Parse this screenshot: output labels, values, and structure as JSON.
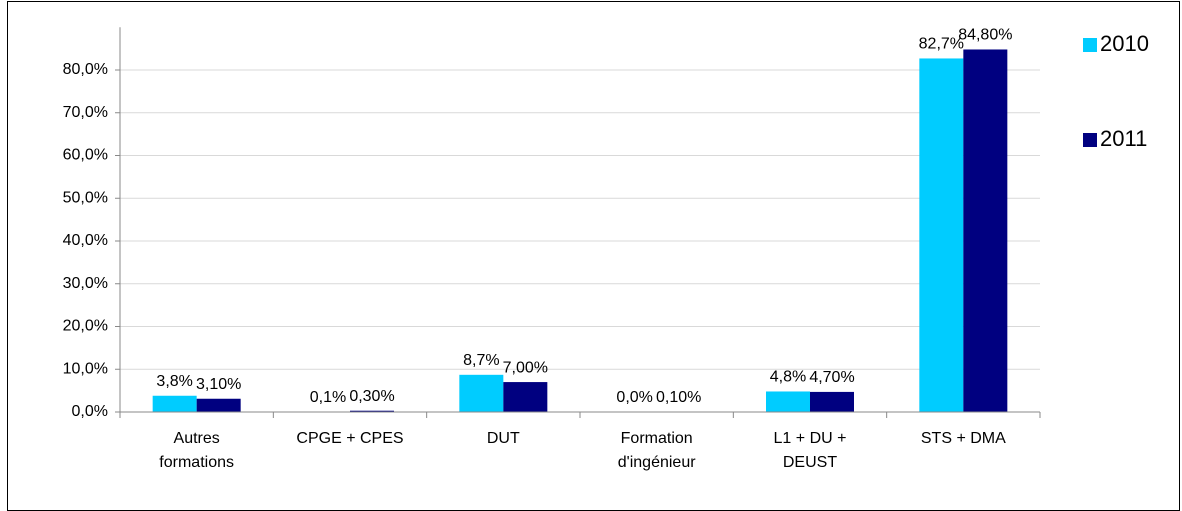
{
  "chart_data": {
    "type": "bar",
    "categories": [
      "Autres\nformations",
      "CPGE + CPES",
      "DUT",
      "Formation\nd'ingénieur",
      "L1 + DU +\nDEUST",
      "STS + DMA"
    ],
    "series": [
      {
        "name": "2010",
        "color": "#00ccff",
        "values": [
          3.8,
          0.1,
          8.7,
          0.0,
          4.8,
          82.7
        ],
        "value_labels": [
          "3,8%",
          "0,1%",
          "8,7%",
          "0,0%",
          "4,8%",
          "82,7%"
        ]
      },
      {
        "name": "2011",
        "color": "#000080",
        "values": [
          3.1,
          0.3,
          7.0,
          0.1,
          4.7,
          84.8
        ],
        "value_labels": [
          "3,10%",
          "0,30%",
          "7,00%",
          "0,10%",
          "4,70%",
          "84,80%"
        ]
      }
    ],
    "ylim": [
      0,
      90
    ],
    "yticks": [
      {
        "value": 0,
        "label": "0,0%"
      },
      {
        "value": 10,
        "label": "10,0%"
      },
      {
        "value": 20,
        "label": "20,0%"
      },
      {
        "value": 30,
        "label": "30,0%"
      },
      {
        "value": 40,
        "label": "40,0%"
      },
      {
        "value": 50,
        "label": "50,0%"
      },
      {
        "value": 60,
        "label": "60,0%"
      },
      {
        "value": 70,
        "label": "70,0%"
      },
      {
        "value": 80,
        "label": "80,0%"
      }
    ],
    "grid": true,
    "legend": "right"
  }
}
